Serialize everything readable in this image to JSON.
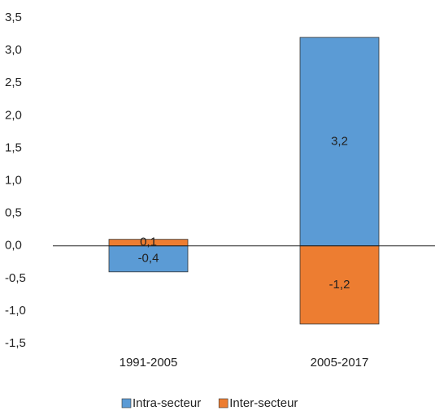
{
  "chart_data": {
    "type": "bar",
    "stacked": true,
    "categories": [
      "1991-2005",
      "2005-2017"
    ],
    "series": [
      {
        "name": "Intra-secteur",
        "color": "#5b9bd5",
        "values": [
          -0.4,
          3.2
        ],
        "value_labels": [
          "-0,4",
          "3,2"
        ]
      },
      {
        "name": "Inter-secteur",
        "color": "#ed7d31",
        "values": [
          0.1,
          -1.2
        ],
        "value_labels": [
          "0,1",
          "-1,2"
        ]
      }
    ],
    "ylim": [
      -1.5,
      3.5
    ],
    "yticks": [
      {
        "value": -1.5,
        "label": "-1,5"
      },
      {
        "value": -1.0,
        "label": "-1,0"
      },
      {
        "value": -0.5,
        "label": "-0,5"
      },
      {
        "value": 0,
        "label": "0,0"
      },
      {
        "value": 0.5,
        "label": "0,5"
      },
      {
        "value": 1.0,
        "label": "1,0"
      },
      {
        "value": 1.5,
        "label": "1,5"
      },
      {
        "value": 2.0,
        "label": "2,0"
      },
      {
        "value": 2.5,
        "label": "2,5"
      },
      {
        "value": 3.0,
        "label": "3,0"
      },
      {
        "value": 3.5,
        "label": "3,5"
      }
    ],
    "grid": false,
    "legend": "bottom"
  }
}
